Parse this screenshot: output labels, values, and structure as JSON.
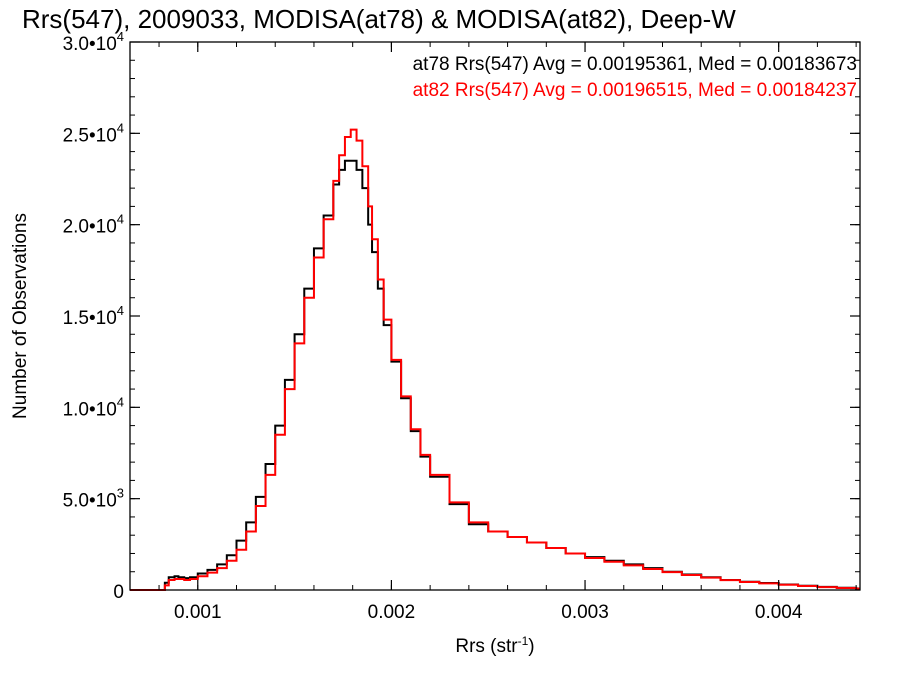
{
  "chart_data": {
    "type": "line",
    "title": "Rrs(547), 2009033, MODISA(at78) & MODISA(at82), Deep-W",
    "xlabel": "Rrs (str",
    "xlabel_exp": "-1",
    "xlabel_tail": ")",
    "ylabel": "Number of Observations",
    "xlim": [
      0.00065,
      0.00442
    ],
    "ylim": [
      0,
      30000
    ],
    "grid": false,
    "legend_position": "top-right",
    "x_ticks": [
      {
        "value": 0.001,
        "label": "0.001"
      },
      {
        "value": 0.002,
        "label": "0.002"
      },
      {
        "value": 0.003,
        "label": "0.003"
      },
      {
        "value": 0.004,
        "label": "0.004"
      }
    ],
    "y_ticks": [
      {
        "value": 0,
        "mantissa": "0",
        "exp": ""
      },
      {
        "value": 5000,
        "mantissa": "5.0•10",
        "exp": "3"
      },
      {
        "value": 10000,
        "mantissa": "1.0•10",
        "exp": "4"
      },
      {
        "value": 15000,
        "mantissa": "1.5•10",
        "exp": "4"
      },
      {
        "value": 20000,
        "mantissa": "2.0•10",
        "exp": "4"
      },
      {
        "value": 25000,
        "mantissa": "2.5•10",
        "exp": "4"
      },
      {
        "value": 30000,
        "mantissa": "3.0•10",
        "exp": "4"
      }
    ],
    "annotations": [
      {
        "text": "at78 Rrs(547) Avg = 0.00195361, Med = 0.00183673",
        "color": "#000000"
      },
      {
        "text": "at82 Rrs(547) Avg = 0.00196515, Med = 0.00184237",
        "color": "#ff0000"
      }
    ],
    "series": [
      {
        "color": "#000000",
        "x": [
          0.00065,
          0.0008,
          0.00083,
          0.00085,
          0.00088,
          0.0009,
          0.00093,
          0.00096,
          0.001,
          0.00105,
          0.0011,
          0.00115,
          0.0012,
          0.00125,
          0.0013,
          0.00135,
          0.0014,
          0.00145,
          0.0015,
          0.00155,
          0.0016,
          0.00165,
          0.0017,
          0.00173,
          0.00176,
          0.00179,
          0.00182,
          0.00185,
          0.00188,
          0.0019,
          0.00193,
          0.00196,
          0.002,
          0.00205,
          0.0021,
          0.00215,
          0.0022,
          0.0023,
          0.0024,
          0.0025,
          0.0026,
          0.0027,
          0.0028,
          0.0029,
          0.003,
          0.0031,
          0.0032,
          0.0033,
          0.0034,
          0.0035,
          0.0036,
          0.0037,
          0.0038,
          0.0039,
          0.004,
          0.0041,
          0.0042,
          0.0043,
          0.0044
        ],
        "values": [
          0,
          0,
          400,
          700,
          750,
          700,
          650,
          700,
          900,
          1100,
          1400,
          1900,
          2700,
          3700,
          5100,
          6900,
          9000,
          11500,
          14000,
          16500,
          18700,
          20500,
          22200,
          23000,
          23500,
          23500,
          23000,
          22000,
          20000,
          18500,
          16500,
          14500,
          12500,
          10500,
          8700,
          7300,
          6200,
          4700,
          3600,
          3200,
          2900,
          2600,
          2300,
          2000,
          1800,
          1600,
          1400,
          1200,
          1000,
          850,
          700,
          550,
          450,
          380,
          300,
          230,
          170,
          120,
          80
        ]
      },
      {
        "color": "#ff0000",
        "x": [
          0.00065,
          0.0008,
          0.00083,
          0.00085,
          0.00088,
          0.0009,
          0.00093,
          0.00096,
          0.001,
          0.00105,
          0.0011,
          0.00115,
          0.0012,
          0.00125,
          0.0013,
          0.00135,
          0.0014,
          0.00145,
          0.0015,
          0.00155,
          0.0016,
          0.00165,
          0.0017,
          0.00173,
          0.00176,
          0.00179,
          0.00182,
          0.00185,
          0.00188,
          0.0019,
          0.00193,
          0.00196,
          0.002,
          0.00205,
          0.0021,
          0.00215,
          0.0022,
          0.0023,
          0.0024,
          0.0025,
          0.0026,
          0.0027,
          0.0028,
          0.0029,
          0.003,
          0.0031,
          0.0032,
          0.0033,
          0.0034,
          0.0035,
          0.0036,
          0.0037,
          0.0038,
          0.0039,
          0.004,
          0.0041,
          0.0042,
          0.0043,
          0.0044
        ],
        "values": [
          0,
          0,
          250,
          550,
          600,
          600,
          550,
          600,
          750,
          950,
          1200,
          1600,
          2200,
          3200,
          4600,
          6300,
          8500,
          11000,
          13500,
          16000,
          18200,
          20300,
          22400,
          23800,
          24800,
          25200,
          24600,
          23200,
          21000,
          19200,
          17000,
          14800,
          12600,
          10600,
          8800,
          7400,
          6300,
          4800,
          3700,
          3200,
          2900,
          2600,
          2300,
          2000,
          1750,
          1550,
          1350,
          1150,
          980,
          820,
          680,
          540,
          440,
          360,
          290,
          220,
          160,
          110,
          75
        ]
      }
    ]
  }
}
